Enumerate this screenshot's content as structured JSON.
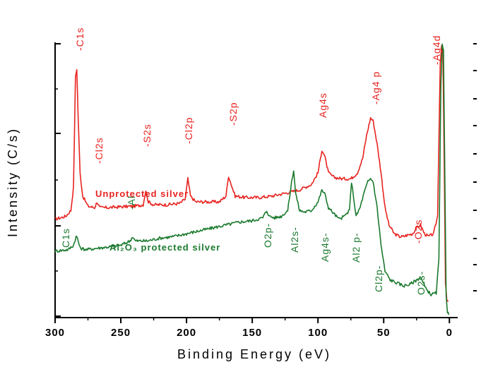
{
  "colors": {
    "series_1": "#e8231f",
    "series_2": "#1b7a2e",
    "axis": "#000000"
  },
  "chart_data": {
    "type": "line",
    "xlabel": "Binding Energy (eV)",
    "ylabel": "Intensity (C/s)",
    "xlim": [
      300,
      -2
    ],
    "x_ticks": [
      "300",
      "250",
      "200",
      "150",
      "100",
      "50",
      "0"
    ],
    "x_tick_values": [
      300,
      250,
      200,
      150,
      100,
      50,
      0
    ],
    "ylim": [
      0,
      100
    ],
    "series": [
      {
        "name": "Unprotected silver",
        "color_key": "series_1",
        "points": [
          [
            300,
            34
          ],
          [
            292,
            35
          ],
          [
            288,
            37
          ],
          [
            286,
            45
          ],
          [
            284.5,
            83
          ],
          [
            283.5,
            86
          ],
          [
            282.5,
            70
          ],
          [
            281,
            50
          ],
          [
            279,
            42
          ],
          [
            275,
            38.5
          ],
          [
            270,
            38
          ],
          [
            268,
            40
          ],
          [
            266,
            38
          ],
          [
            260,
            38
          ],
          [
            250,
            38.3
          ],
          [
            240,
            38.5
          ],
          [
            233,
            39
          ],
          [
            231,
            44
          ],
          [
            229,
            40
          ],
          [
            225,
            39
          ],
          [
            215,
            39
          ],
          [
            205,
            39.5
          ],
          [
            201,
            41
          ],
          [
            199,
            48
          ],
          [
            197,
            42
          ],
          [
            193,
            40
          ],
          [
            185,
            40
          ],
          [
            175,
            40
          ],
          [
            170,
            42
          ],
          [
            168,
            49
          ],
          [
            166,
            46
          ],
          [
            163,
            42
          ],
          [
            155,
            41.5
          ],
          [
            145,
            41.5
          ],
          [
            135,
            42
          ],
          [
            125,
            43
          ],
          [
            115,
            44
          ],
          [
            105,
            46
          ],
          [
            100,
            50
          ],
          [
            97,
            58
          ],
          [
            95,
            56
          ],
          [
            92,
            50
          ],
          [
            88,
            48.5
          ],
          [
            82,
            48
          ],
          [
            75,
            48
          ],
          [
            70,
            50
          ],
          [
            66,
            55
          ],
          [
            63,
            63
          ],
          [
            60,
            69
          ],
          [
            58,
            68
          ],
          [
            55,
            60
          ],
          [
            52,
            50
          ],
          [
            49,
            38
          ],
          [
            46,
            32
          ],
          [
            42,
            29
          ],
          [
            38,
            28
          ],
          [
            35,
            28
          ],
          [
            32,
            28.5
          ],
          [
            28,
            29
          ],
          [
            25,
            31
          ],
          [
            22,
            32
          ],
          [
            19,
            29
          ],
          [
            16,
            28
          ],
          [
            12,
            29
          ],
          [
            9,
            35
          ],
          [
            7,
            88
          ],
          [
            6,
            94
          ],
          [
            5,
            93
          ],
          [
            4,
            55
          ],
          [
            3,
            12
          ],
          [
            2,
            6
          ],
          [
            1,
            5.5
          ]
        ]
      },
      {
        "name": "Al₂O₃ protected silver",
        "color_key": "series_2",
        "points": [
          [
            300,
            23
          ],
          [
            290,
            23.5
          ],
          [
            286,
            25
          ],
          [
            284,
            28
          ],
          [
            283,
            27.5
          ],
          [
            281,
            24
          ],
          [
            276,
            23.5
          ],
          [
            268,
            24
          ],
          [
            258,
            24.5
          ],
          [
            250,
            25
          ],
          [
            243,
            26.5
          ],
          [
            241,
            28
          ],
          [
            239,
            26.5
          ],
          [
            230,
            26.5
          ],
          [
            220,
            27.5
          ],
          [
            210,
            28
          ],
          [
            200,
            29
          ],
          [
            190,
            30
          ],
          [
            180,
            31
          ],
          [
            170,
            32
          ],
          [
            160,
            33
          ],
          [
            150,
            33.5
          ],
          [
            142,
            34.5
          ],
          [
            139,
            37
          ],
          [
            137,
            35
          ],
          [
            133,
            34.5
          ],
          [
            128,
            35
          ],
          [
            123,
            37
          ],
          [
            120,
            47
          ],
          [
            118.5,
            51
          ],
          [
            117,
            43
          ],
          [
            114,
            37
          ],
          [
            110,
            36.5
          ],
          [
            105,
            37
          ],
          [
            100,
            40
          ],
          [
            97,
            44
          ],
          [
            95,
            43
          ],
          [
            92,
            38
          ],
          [
            88,
            36
          ],
          [
            84,
            34
          ],
          [
            80,
            35
          ],
          [
            76,
            37
          ],
          [
            74.5,
            47
          ],
          [
            73,
            42
          ],
          [
            71,
            35
          ],
          [
            68,
            38
          ],
          [
            65,
            43
          ],
          [
            62,
            47
          ],
          [
            60,
            48
          ],
          [
            58,
            47
          ],
          [
            55,
            38
          ],
          [
            52,
            25
          ],
          [
            49,
            16
          ],
          [
            45,
            13
          ],
          [
            40,
            12
          ],
          [
            35,
            11
          ],
          [
            30,
            11.5
          ],
          [
            25,
            13
          ],
          [
            22,
            14
          ],
          [
            18,
            10
          ],
          [
            14,
            8
          ],
          [
            10,
            8.5
          ],
          [
            8,
            20
          ],
          [
            6.5,
            80
          ],
          [
            5.5,
            94
          ],
          [
            4.5,
            92
          ],
          [
            3.5,
            50
          ],
          [
            2.5,
            8
          ],
          [
            1.5,
            2
          ],
          [
            0.5,
            1
          ]
        ]
      }
    ],
    "peak_labels": [
      {
        "text": "-C1s",
        "series": "series_1",
        "x": 283
      },
      {
        "text": "-Cl2s",
        "series": "series_1",
        "x": 268
      },
      {
        "text": "-S2s",
        "series": "series_1",
        "x": 230
      },
      {
        "text": "-Cl2p",
        "series": "series_1",
        "x": 199
      },
      {
        "text": "-S2p",
        "series": "series_1",
        "x": 168
      },
      {
        "text": "Ag4s",
        "series": "series_1",
        "x": 96
      },
      {
        "text": "-Ag4 p",
        "series": "series_1",
        "x": 58
      },
      {
        "text": "-O2s",
        "series": "series_1",
        "x": 25
      },
      {
        "text": "-Ag4d",
        "series": "series_1",
        "x": 7
      },
      {
        "text": "C1s",
        "series": "series_2",
        "x": 285
      },
      {
        "text": "-Al",
        "series": "series_2",
        "x": 241
      },
      {
        "text": "O2p-",
        "series": "series_2",
        "x": 138
      },
      {
        "text": "Al2s-",
        "series": "series_2",
        "x": 119
      },
      {
        "text": "Ag4s-",
        "series": "series_2",
        "x": 96
      },
      {
        "text": "Al2 p-",
        "series": "series_2",
        "x": 75
      },
      {
        "text": "Cl2p-",
        "series": "series_2",
        "x": 56
      },
      {
        "text": "O2s-",
        "series": "series_2",
        "x": 22
      }
    ]
  }
}
